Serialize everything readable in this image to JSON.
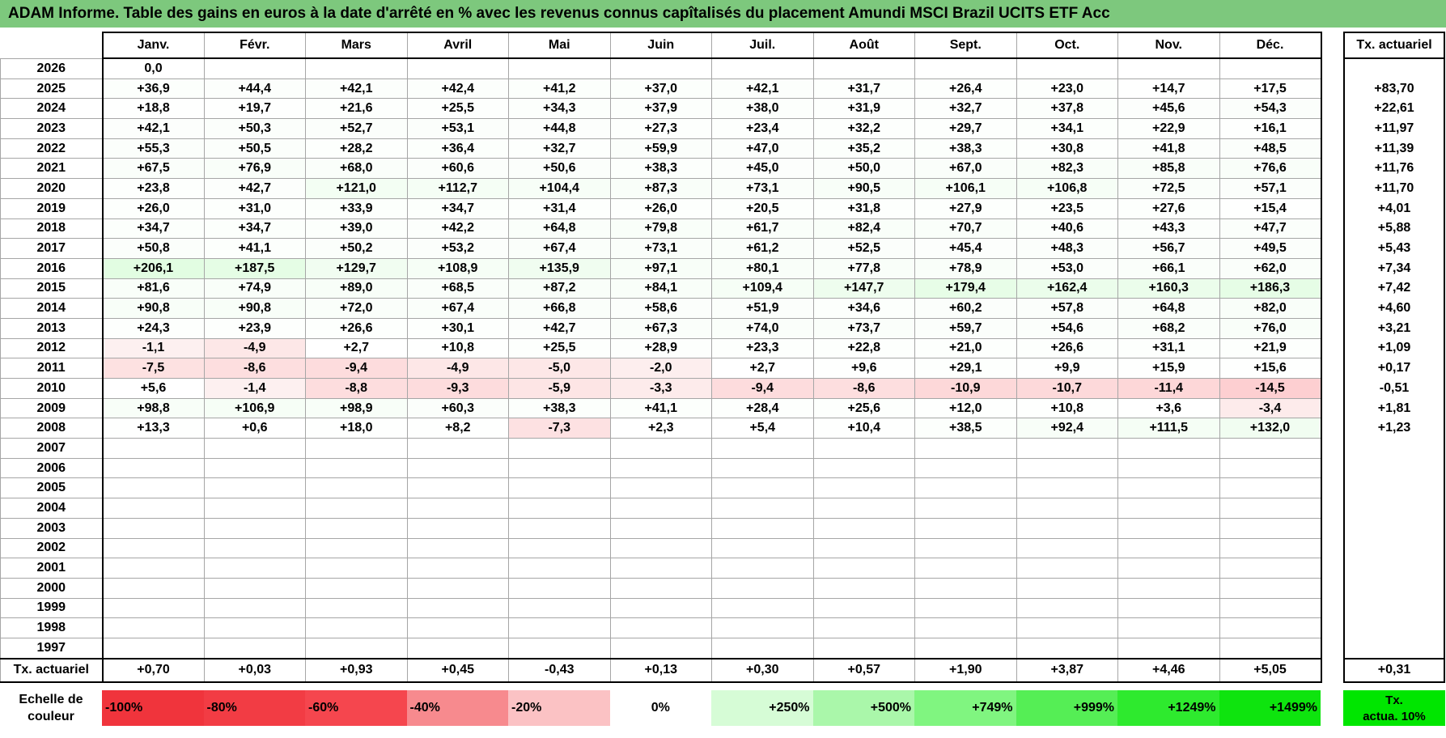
{
  "title": "ADAM Informe. Table des gains en euros à la date d'arrêté en % avec les revenus connus capîtalisés du placement Amundi MSCI Brazil UCITS ETF Acc",
  "months": [
    "Janv.",
    "Févr.",
    "Mars",
    "Avril",
    "Mai",
    "Juin",
    "Juil.",
    "Août",
    "Sept.",
    "Oct.",
    "Nov.",
    "Déc."
  ],
  "tx_header": "Tx. actuariel",
  "rows": [
    {
      "year": "2026",
      "values": [
        "0,0",
        "",
        "",
        "",
        "",
        "",
        "",
        "",
        "",
        "",
        "",
        ""
      ],
      "tx": ""
    },
    {
      "year": "2025",
      "values": [
        "+36,9",
        "+44,4",
        "+42,1",
        "+42,4",
        "+41,2",
        "+37,0",
        "+42,1",
        "+31,7",
        "+26,4",
        "+23,0",
        "+14,7",
        "+17,5"
      ],
      "tx": "+83,70"
    },
    {
      "year": "2024",
      "values": [
        "+18,8",
        "+19,7",
        "+21,6",
        "+25,5",
        "+34,3",
        "+37,9",
        "+38,0",
        "+31,9",
        "+32,7",
        "+37,8",
        "+45,6",
        "+54,3"
      ],
      "tx": "+22,61"
    },
    {
      "year": "2023",
      "values": [
        "+42,1",
        "+50,3",
        "+52,7",
        "+53,1",
        "+44,8",
        "+27,3",
        "+23,4",
        "+32,2",
        "+29,7",
        "+34,1",
        "+22,9",
        "+16,1"
      ],
      "tx": "+11,97"
    },
    {
      "year": "2022",
      "values": [
        "+55,3",
        "+50,5",
        "+28,2",
        "+36,4",
        "+32,7",
        "+59,9",
        "+47,0",
        "+35,2",
        "+38,3",
        "+30,8",
        "+41,8",
        "+48,5"
      ],
      "tx": "+11,39"
    },
    {
      "year": "2021",
      "values": [
        "+67,5",
        "+76,9",
        "+68,0",
        "+60,6",
        "+50,6",
        "+38,3",
        "+45,0",
        "+50,0",
        "+67,0",
        "+82,3",
        "+85,8",
        "+76,6"
      ],
      "tx": "+11,76"
    },
    {
      "year": "2020",
      "values": [
        "+23,8",
        "+42,7",
        "+121,0",
        "+112,7",
        "+104,4",
        "+87,3",
        "+73,1",
        "+90,5",
        "+106,1",
        "+106,8",
        "+72,5",
        "+57,1"
      ],
      "tx": "+11,70"
    },
    {
      "year": "2019",
      "values": [
        "+26,0",
        "+31,0",
        "+33,9",
        "+34,7",
        "+31,4",
        "+26,0",
        "+20,5",
        "+31,8",
        "+27,9",
        "+23,5",
        "+27,6",
        "+15,4"
      ],
      "tx": "+4,01"
    },
    {
      "year": "2018",
      "values": [
        "+34,7",
        "+34,7",
        "+39,0",
        "+42,2",
        "+64,8",
        "+79,8",
        "+61,7",
        "+82,4",
        "+70,7",
        "+40,6",
        "+43,3",
        "+47,7"
      ],
      "tx": "+5,88"
    },
    {
      "year": "2017",
      "values": [
        "+50,8",
        "+41,1",
        "+50,2",
        "+53,2",
        "+67,4",
        "+73,1",
        "+61,2",
        "+52,5",
        "+45,4",
        "+48,3",
        "+56,7",
        "+49,5"
      ],
      "tx": "+5,43"
    },
    {
      "year": "2016",
      "values": [
        "+206,1",
        "+187,5",
        "+129,7",
        "+108,9",
        "+135,9",
        "+97,1",
        "+80,1",
        "+77,8",
        "+78,9",
        "+53,0",
        "+66,1",
        "+62,0"
      ],
      "tx": "+7,34"
    },
    {
      "year": "2015",
      "values": [
        "+81,6",
        "+74,9",
        "+89,0",
        "+68,5",
        "+87,2",
        "+84,1",
        "+109,4",
        "+147,7",
        "+179,4",
        "+162,4",
        "+160,3",
        "+186,3"
      ],
      "tx": "+7,42"
    },
    {
      "year": "2014",
      "values": [
        "+90,8",
        "+90,8",
        "+72,0",
        "+67,4",
        "+66,8",
        "+58,6",
        "+51,9",
        "+34,6",
        "+60,2",
        "+57,8",
        "+64,8",
        "+82,0"
      ],
      "tx": "+4,60"
    },
    {
      "year": "2013",
      "values": [
        "+24,3",
        "+23,9",
        "+26,6",
        "+30,1",
        "+42,7",
        "+67,3",
        "+74,0",
        "+73,7",
        "+59,7",
        "+54,6",
        "+68,2",
        "+76,0"
      ],
      "tx": "+3,21"
    },
    {
      "year": "2012",
      "values": [
        "-1,1",
        "-4,9",
        "+2,7",
        "+10,8",
        "+25,5",
        "+28,9",
        "+23,3",
        "+22,8",
        "+21,0",
        "+26,6",
        "+31,1",
        "+21,9"
      ],
      "tx": "+1,09"
    },
    {
      "year": "2011",
      "values": [
        "-7,5",
        "-8,6",
        "-9,4",
        "-4,9",
        "-5,0",
        "-2,0",
        "+2,7",
        "+9,6",
        "+29,1",
        "+9,9",
        "+15,9",
        "+15,6"
      ],
      "tx": "+0,17"
    },
    {
      "year": "2010",
      "values": [
        "+5,6",
        "-1,4",
        "-8,8",
        "-9,3",
        "-5,9",
        "-3,3",
        "-9,4",
        "-8,6",
        "-10,9",
        "-10,7",
        "-11,4",
        "-14,5"
      ],
      "tx": "-0,51"
    },
    {
      "year": "2009",
      "values": [
        "+98,8",
        "+106,9",
        "+98,9",
        "+60,3",
        "+38,3",
        "+41,1",
        "+28,4",
        "+25,6",
        "+12,0",
        "+10,8",
        "+3,6",
        "-3,4"
      ],
      "tx": "+1,81"
    },
    {
      "year": "2008",
      "values": [
        "+13,3",
        "+0,6",
        "+18,0",
        "+8,2",
        "-7,3",
        "+2,3",
        "+5,4",
        "+10,4",
        "+38,5",
        "+92,4",
        "+111,5",
        "+132,0"
      ],
      "tx": "+1,23"
    },
    {
      "year": "2007",
      "values": [
        "",
        "",
        "",
        "",
        "",
        "",
        "",
        "",
        "",
        "",
        "",
        ""
      ],
      "tx": ""
    },
    {
      "year": "2006",
      "values": [
        "",
        "",
        "",
        "",
        "",
        "",
        "",
        "",
        "",
        "",
        "",
        ""
      ],
      "tx": ""
    },
    {
      "year": "2005",
      "values": [
        "",
        "",
        "",
        "",
        "",
        "",
        "",
        "",
        "",
        "",
        "",
        ""
      ],
      "tx": ""
    },
    {
      "year": "2004",
      "values": [
        "",
        "",
        "",
        "",
        "",
        "",
        "",
        "",
        "",
        "",
        "",
        ""
      ],
      "tx": ""
    },
    {
      "year": "2003",
      "values": [
        "",
        "",
        "",
        "",
        "",
        "",
        "",
        "",
        "",
        "",
        "",
        ""
      ],
      "tx": ""
    },
    {
      "year": "2002",
      "values": [
        "",
        "",
        "",
        "",
        "",
        "",
        "",
        "",
        "",
        "",
        "",
        ""
      ],
      "tx": ""
    },
    {
      "year": "2001",
      "values": [
        "",
        "",
        "",
        "",
        "",
        "",
        "",
        "",
        "",
        "",
        "",
        ""
      ],
      "tx": ""
    },
    {
      "year": "2000",
      "values": [
        "",
        "",
        "",
        "",
        "",
        "",
        "",
        "",
        "",
        "",
        "",
        ""
      ],
      "tx": ""
    },
    {
      "year": "1999",
      "values": [
        "",
        "",
        "",
        "",
        "",
        "",
        "",
        "",
        "",
        "",
        "",
        ""
      ],
      "tx": ""
    },
    {
      "year": "1998",
      "values": [
        "",
        "",
        "",
        "",
        "",
        "",
        "",
        "",
        "",
        "",
        "",
        ""
      ],
      "tx": ""
    },
    {
      "year": "1997",
      "values": [
        "",
        "",
        "",
        "",
        "",
        "",
        "",
        "",
        "",
        "",
        "",
        ""
      ],
      "tx": ""
    }
  ],
  "footer": {
    "label": "Tx. actuariel",
    "values": [
      "+0,70",
      "+0,03",
      "+0,93",
      "+0,45",
      "-0,43",
      "+0,13",
      "+0,30",
      "+0,57",
      "+1,90",
      "+3,87",
      "+4,46",
      "+5,05"
    ],
    "tx": "+0,31"
  },
  "scale": {
    "label_line1": "Echelle de",
    "label_line2": "couleur",
    "items": [
      {
        "label": "-100%",
        "color": "#f0343c",
        "align": "l"
      },
      {
        "label": "-80%",
        "color": "#f23c44",
        "align": "l"
      },
      {
        "label": "-60%",
        "color": "#f5464e",
        "align": "l"
      },
      {
        "label": "-40%",
        "color": "#f78a8e",
        "align": "l"
      },
      {
        "label": "-20%",
        "color": "#fbc2c4",
        "align": "l"
      },
      {
        "label": "0%",
        "color": "#ffffff",
        "align": "c"
      },
      {
        "label": "+250%",
        "color": "#d6fcd6",
        "align": "r"
      },
      {
        "label": "+500%",
        "color": "#aaf7aa",
        "align": "r"
      },
      {
        "label": "+749%",
        "color": "#80f580",
        "align": "r"
      },
      {
        "label": "+999%",
        "color": "#55ee55",
        "align": "r"
      },
      {
        "label": "+1249%",
        "color": "#2eea2e",
        "align": "r"
      },
      {
        "label": "+1499%",
        "color": "#0ee40e",
        "align": "r"
      }
    ],
    "tx_line1": "Tx.",
    "tx_line2": "actua. 10%"
  }
}
